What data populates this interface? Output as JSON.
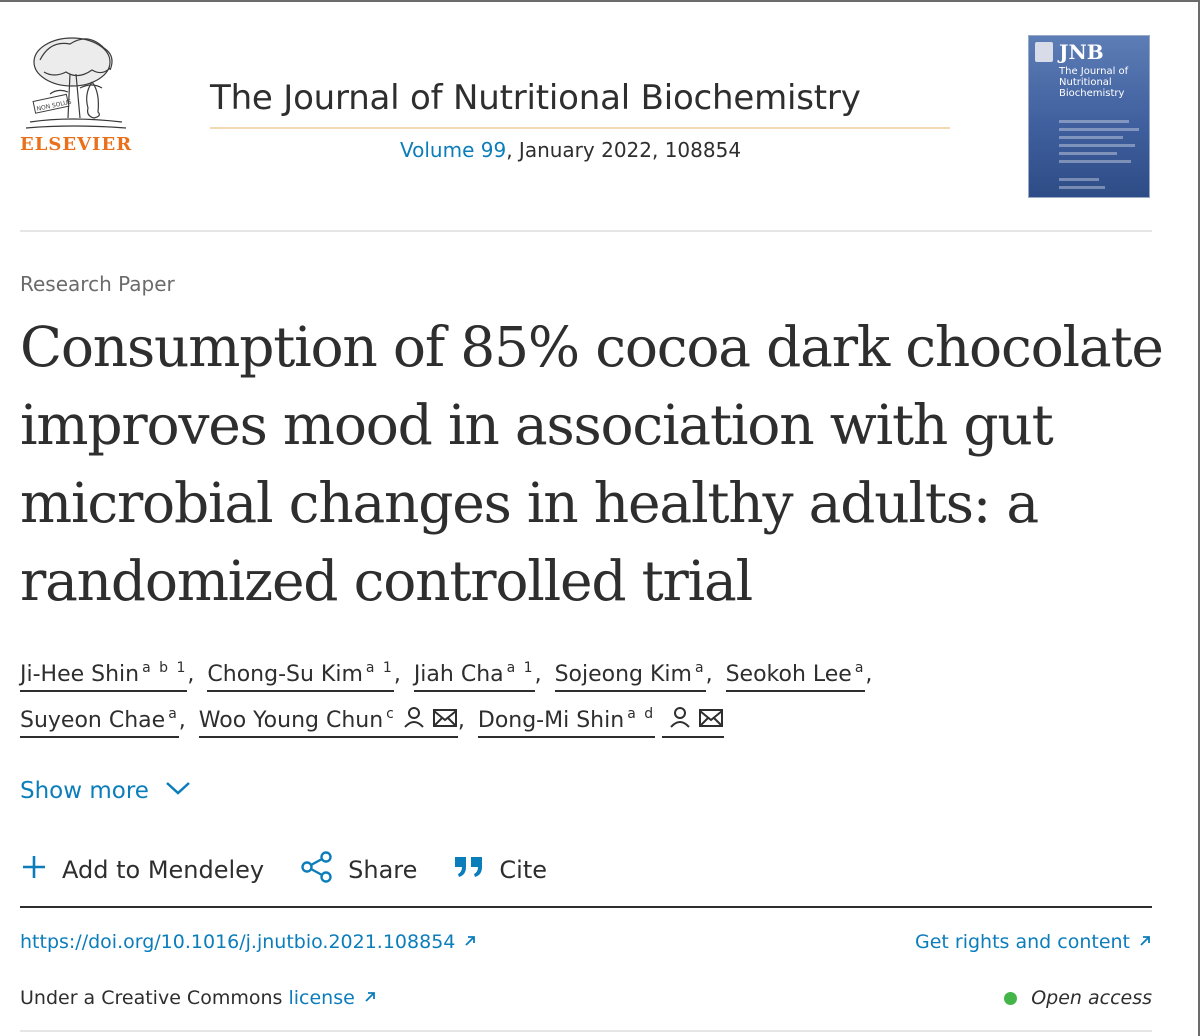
{
  "header": {
    "publisher": "ELSEVIER",
    "journal_title": "The Journal of Nutritional Biochemistry",
    "volume_link": "Volume 99",
    "issue_rest": ", January 2022, 108854",
    "cover": {
      "abbrev": "JNB",
      "title": "The Journal of Nutritional Biochemistry"
    }
  },
  "article": {
    "type": "Research Paper",
    "title": "Consumption of 85% cocoa dark chocolate improves mood in association with gut microbial changes in healthy adults: a randomized controlled trial",
    "authors": [
      {
        "name": "Ji-Hee Shin",
        "sup": "a b 1"
      },
      {
        "name": "Chong-Su Kim",
        "sup": "a 1"
      },
      {
        "name": "Jiah Cha",
        "sup": "a 1"
      },
      {
        "name": "Sojeong Kim",
        "sup": "a"
      },
      {
        "name": "Seokoh Lee",
        "sup": "a"
      },
      {
        "name": "Suyeon Chae",
        "sup": "a"
      },
      {
        "name": "Woo Young Chun",
        "sup": "c"
      },
      {
        "name": "Dong-Mi Shin",
        "sup": "a d"
      }
    ],
    "show_more": "Show more",
    "actions": {
      "mendeley": "Add to Mendeley",
      "share": "Share",
      "cite": "Cite"
    },
    "doi": "https://doi.org/10.1016/j.jnutbio.2021.108854",
    "rights": "Get rights and content",
    "license_prefix": "Under a Creative Commons ",
    "license_link": "license",
    "open_access": "Open access"
  },
  "colors": {
    "link": "#0c7dbb",
    "elsevier_orange": "#e9711c",
    "open_access_dot": "#44b549",
    "text": "#2e2e2e"
  },
  "icons": [
    "elsevier-tree-logo",
    "chevron-down-icon",
    "plus-icon",
    "share-icon",
    "quote-icon",
    "external-link-icon",
    "person-icon",
    "envelope-icon"
  ]
}
